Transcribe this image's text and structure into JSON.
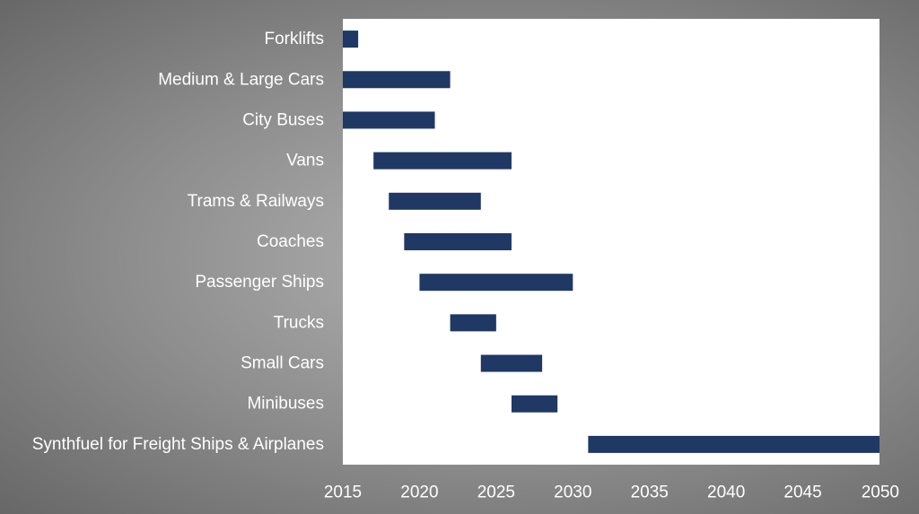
{
  "chart_data": {
    "type": "bar",
    "orientation": "horizontal",
    "style": "floating-range",
    "title": "",
    "xlabel": "",
    "ylabel": "",
    "xlim": [
      2015,
      2050
    ],
    "x_ticks": [
      2015,
      2020,
      2025,
      2030,
      2035,
      2040,
      2045,
      2050
    ],
    "grid": false,
    "legend": "none",
    "bar_color": "#1f3864",
    "plot_background": "#ffffff",
    "categories": [
      "Forklifts",
      "Medium & Large Cars",
      "City Buses",
      "Vans",
      "Trams & Railways",
      "Coaches",
      "Passenger Ships",
      "Trucks",
      "Small Cars",
      "Minibuses",
      "Synthfuel for Freight Ships & Airplanes"
    ],
    "ranges": [
      [
        2015,
        2016
      ],
      [
        2015,
        2022
      ],
      [
        2015,
        2021
      ],
      [
        2017,
        2026
      ],
      [
        2018,
        2024
      ],
      [
        2019,
        2026
      ],
      [
        2020,
        2030
      ],
      [
        2022,
        2025
      ],
      [
        2024,
        2028
      ],
      [
        2026,
        2029
      ],
      [
        2031,
        2050
      ]
    ]
  }
}
